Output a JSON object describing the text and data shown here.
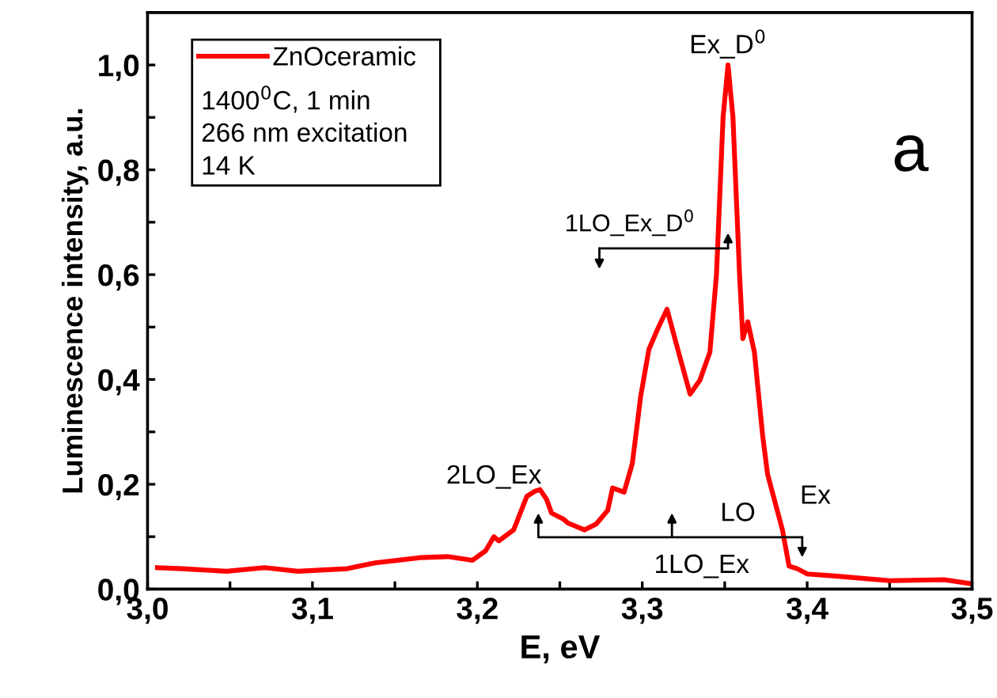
{
  "chart_data": {
    "type": "line",
    "xlabel": "E, eV",
    "ylabel": "Luminescence intensity, a.u.",
    "x": [
      3.006,
      3.021,
      3.048,
      3.071,
      3.091,
      3.121,
      3.138,
      3.165,
      3.182,
      3.197,
      3.205,
      3.21,
      3.213,
      3.222,
      3.23,
      3.235,
      3.238,
      3.242,
      3.245,
      3.252,
      3.255,
      3.265,
      3.272,
      3.279,
      3.282,
      3.289,
      3.294,
      3.299,
      3.304,
      3.309,
      3.315,
      3.322,
      3.329,
      3.335,
      3.341,
      3.345,
      3.349,
      3.352,
      3.355,
      3.359,
      3.361,
      3.364,
      3.368,
      3.373,
      3.376,
      3.385,
      3.389,
      3.394,
      3.4,
      3.417,
      3.45,
      3.483,
      3.5
    ],
    "series": [
      {
        "name": "ZnOceramic",
        "color": "#ff0000",
        "values": [
          0.041,
          0.039,
          0.034,
          0.041,
          0.034,
          0.039,
          0.05,
          0.06,
          0.062,
          0.055,
          0.073,
          0.1,
          0.092,
          0.113,
          0.177,
          0.187,
          0.19,
          0.171,
          0.145,
          0.134,
          0.126,
          0.113,
          0.124,
          0.15,
          0.193,
          0.185,
          0.24,
          0.367,
          0.457,
          0.494,
          0.534,
          0.452,
          0.372,
          0.399,
          0.452,
          0.6,
          0.9,
          1.0,
          0.9,
          0.6,
          0.478,
          0.51,
          0.452,
          0.293,
          0.219,
          0.113,
          0.044,
          0.039,
          0.029,
          0.025,
          0.016,
          0.018,
          0.01
        ]
      }
    ],
    "xlim": [
      3.0,
      3.5
    ],
    "xticks": [
      {
        "value": 3.0,
        "label": "3,0"
      },
      {
        "value": 3.05,
        "label": null
      },
      {
        "value": 3.1,
        "label": "3,1"
      },
      {
        "value": 3.15,
        "label": null
      },
      {
        "value": 3.2,
        "label": "3,2"
      },
      {
        "value": 3.25,
        "label": null
      },
      {
        "value": 3.3,
        "label": "3,3"
      },
      {
        "value": 3.35,
        "label": null
      },
      {
        "value": 3.4,
        "label": "3,4"
      },
      {
        "value": 3.45,
        "label": null
      },
      {
        "value": 3.5,
        "label": "3,5"
      }
    ],
    "ylim": [
      0,
      1.1
    ],
    "yticks": [
      {
        "value": 0,
        "label": "0,0"
      },
      {
        "value": 0.1,
        "label": null
      },
      {
        "value": 0.2,
        "label": "0,2"
      },
      {
        "value": 0.3,
        "label": null
      },
      {
        "value": 0.4,
        "label": "0,4"
      },
      {
        "value": 0.5,
        "label": null
      },
      {
        "value": 0.6,
        "label": "0,6"
      },
      {
        "value": 0.7,
        "label": null
      },
      {
        "value": 0.8,
        "label": "0,8"
      },
      {
        "value": 0.9,
        "label": null
      },
      {
        "value": 1.0,
        "label": "1,0"
      }
    ],
    "legend": "top left",
    "grid": false,
    "marker": "none",
    "line_style": "solid",
    "annotations": [
      "1400$^{0}$C, 1 min",
      "266 nm excitation",
      "14 K",
      "a",
      "Ex_D$^{0}$",
      "1LO_Ex_D$^{0}$",
      "2LO_Ex",
      "LO",
      "Ex",
      "1LO_Ex"
    ]
  }
}
